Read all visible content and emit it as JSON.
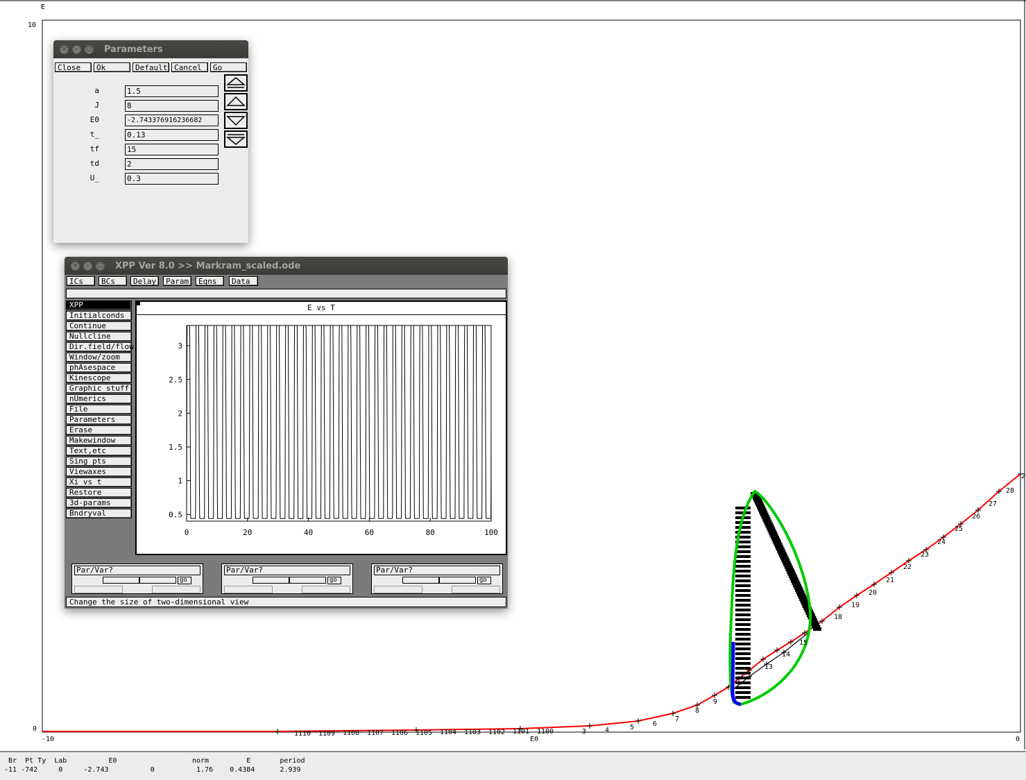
{
  "main_plot": {
    "ylabel": "E",
    "xlabel": "E0",
    "y_top_tick": "10",
    "y_bottom_tick": "0",
    "x_left_tick": "-10",
    "x_right_tick": "0",
    "x_right_edge_label": "2",
    "branch_labels_upper": [
      "9",
      "8",
      "7",
      "6",
      "5",
      "4",
      "3",
      "13",
      "14",
      "15",
      "18",
      "19",
      "20",
      "21",
      "22",
      "23",
      "24",
      "25",
      "26",
      "27",
      "28"
    ],
    "branch_labels_lower": [
      "1110",
      "1109",
      "1108",
      "1107",
      "1106",
      "1105",
      "1104",
      "1103",
      "1102",
      "1101",
      "1100"
    ],
    "colors": {
      "stable": "#ff0000",
      "unstable": "#000000",
      "periodic_stable": "#00cc00",
      "periodic_unstable": "#0000ff"
    }
  },
  "status": {
    "header": "  Br  Pt Ty  Lab          E0                  norm         E       period",
    "values": " -11 -742     0     -2.743          0          1.76    0.4384      2.939"
  },
  "params_window": {
    "title": "Parameters",
    "buttons": [
      "Close",
      "Ok",
      "Default",
      "Cancel",
      "Go"
    ],
    "rows": [
      {
        "label": "a",
        "value": "1.5"
      },
      {
        "label": "J",
        "value": "8"
      },
      {
        "label": "E0",
        "value": "-2.743376916236682"
      },
      {
        "label": "t_",
        "value": "0.13"
      },
      {
        "label": "tf",
        "value": "15"
      },
      {
        "label": "td",
        "value": "2"
      },
      {
        "label": "U_",
        "value": "0.3"
      }
    ]
  },
  "xpp_window": {
    "title": "XPP Ver 8.0 >> Markram_scaled.ode",
    "toolbar": [
      "ICs",
      "BCs",
      "Delay",
      "Param",
      "Eqns",
      "Data"
    ],
    "menu": [
      "XPP",
      "Initialconds",
      "Continue",
      "Nullcline",
      "Dir.field/flow",
      "Window/zoom",
      "phAsespace",
      "Kinescope",
      "Graphic stuff",
      "nUmerics",
      "File",
      "Parameters",
      "Erase",
      "Makewindow",
      "Text,etc",
      "Sing pts",
      "Viewaxes",
      "Xi vs t",
      "Restore",
      "3d-params",
      "Bndryval"
    ],
    "plot_title": "E vs T",
    "sliders": [
      {
        "label": "Par/Var?",
        "go": "go"
      },
      {
        "label": "Par/Var?",
        "go": "go"
      },
      {
        "label": "Par/Var?",
        "go": "go"
      }
    ],
    "status_line": "Change the size of two-dimensional view"
  },
  "chart_data": {
    "type": "line",
    "title": "E vs T",
    "xlabel": "",
    "ylabel": "",
    "xlim": [
      0,
      100
    ],
    "ylim": [
      0.4,
      3.3
    ],
    "x_ticks": [
      "0",
      "20",
      "40",
      "60",
      "80",
      "100"
    ],
    "y_ticks": [
      "0.5",
      "1",
      "1.5",
      "2",
      "2.5",
      "3"
    ],
    "series": [
      {
        "period": 2.939,
        "min": 0.44,
        "max": 3.3
      }
    ]
  }
}
